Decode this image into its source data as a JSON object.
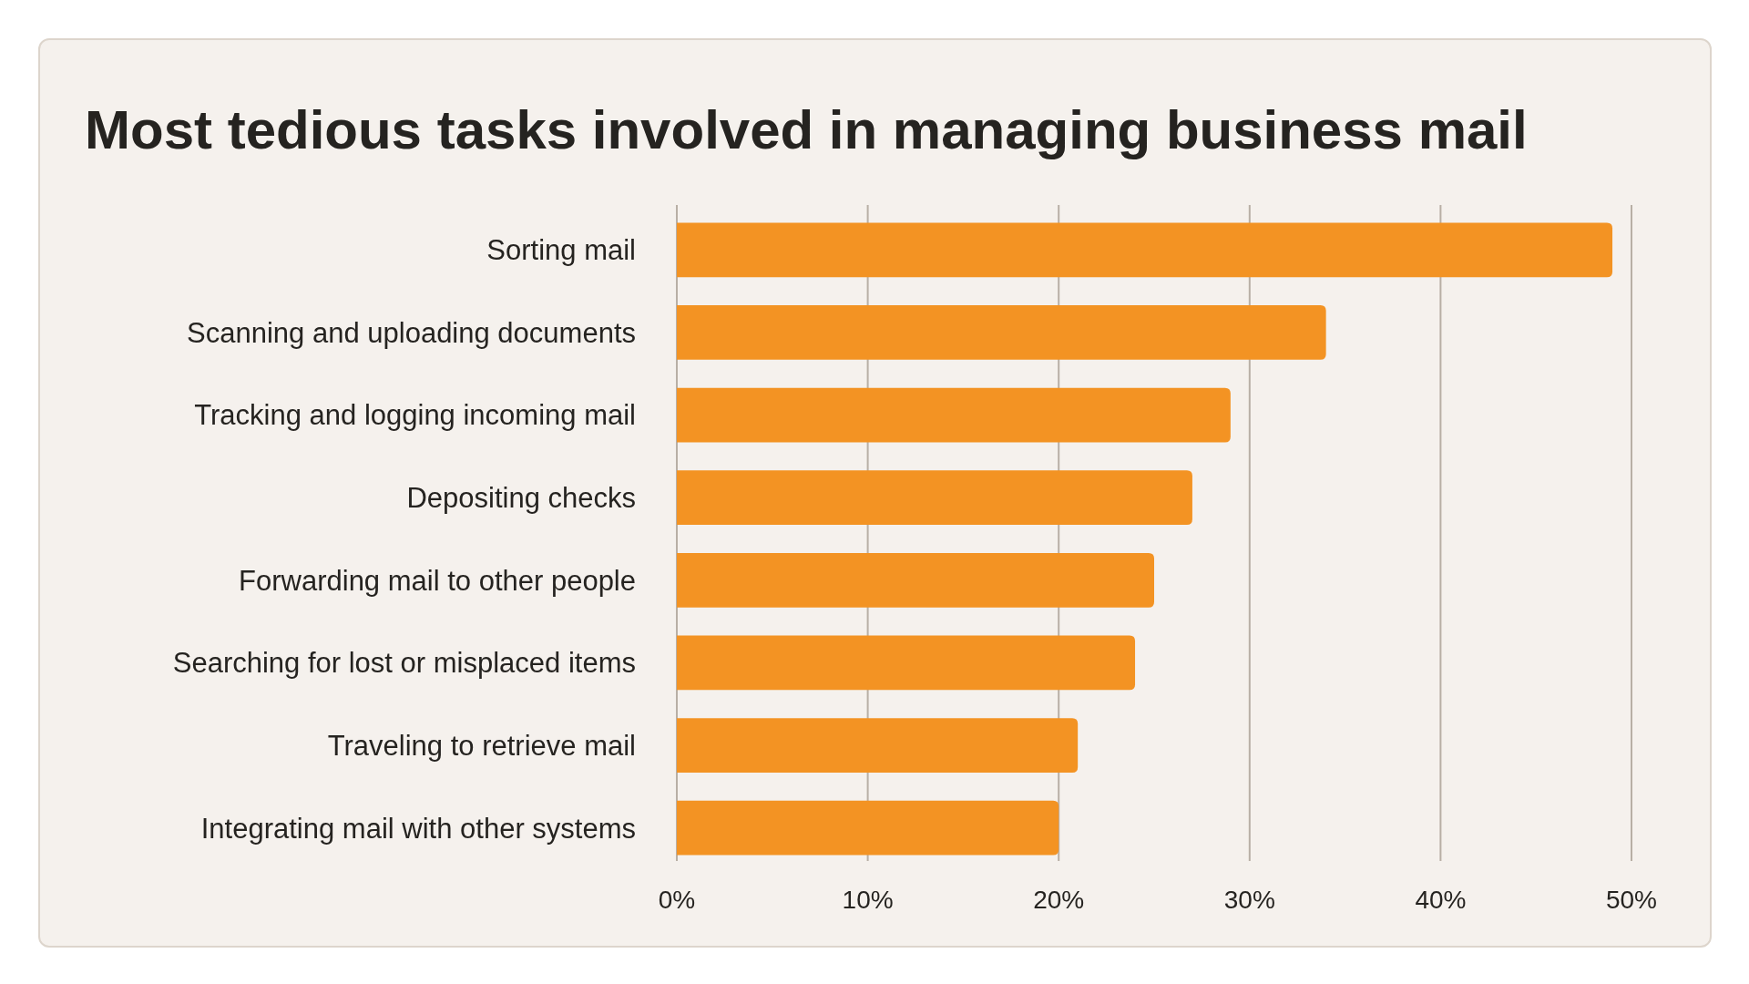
{
  "chart_data": {
    "type": "bar",
    "orientation": "horizontal",
    "title": "Most tedious tasks involved in managing business mail",
    "categories": [
      "Sorting mail",
      "Scanning and uploading documents",
      "Tracking and logging incoming mail",
      "Depositing checks",
      "Forwarding mail to other people",
      "Searching for lost or misplaced items",
      "Traveling to retrieve mail",
      "Integrating mail with other systems"
    ],
    "values": [
      49,
      34,
      29,
      27,
      25,
      24,
      21,
      20
    ],
    "color": "#f39323",
    "xlim": [
      0,
      50
    ],
    "xticks": [
      {
        "value": 0,
        "label": "0%"
      },
      {
        "value": 10,
        "label": "10%"
      },
      {
        "value": 20,
        "label": "20%"
      },
      {
        "value": 30,
        "label": "30%"
      },
      {
        "value": 40,
        "label": "40%"
      },
      {
        "value": 50,
        "label": "50%"
      }
    ],
    "grid": "x"
  }
}
